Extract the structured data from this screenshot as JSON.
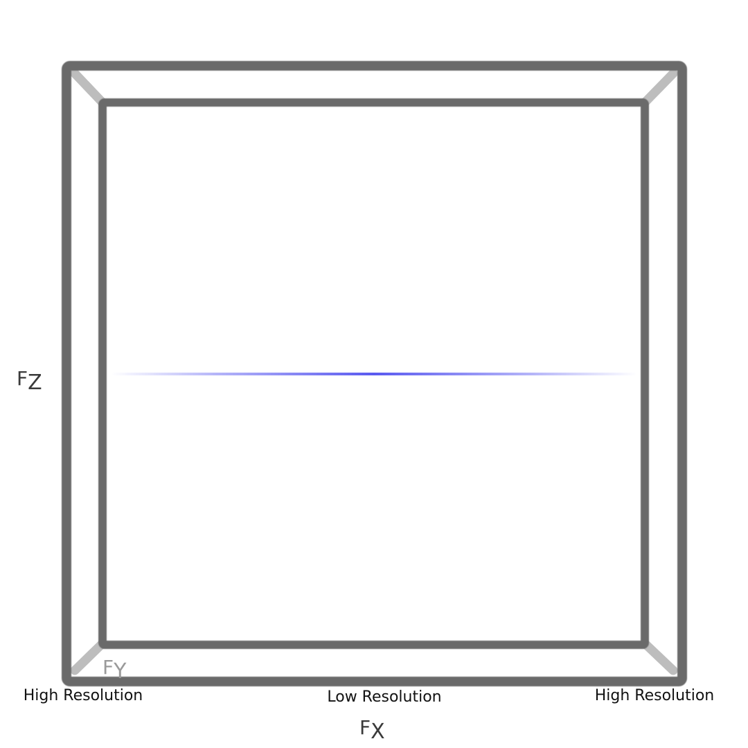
{
  "axes": {
    "fx": {
      "main": "F",
      "sub": "X"
    },
    "fy": {
      "main": "F",
      "sub": "Y"
    },
    "fz": {
      "main": "F",
      "sub": "Z"
    }
  },
  "resolution_labels": {
    "left": "High Resolution",
    "center": "Low Resolution",
    "right": "High Resolution"
  },
  "colors": {
    "frame": "#6b6b6b",
    "back_edges": "#bdbdbd",
    "streak": "#5a5af0"
  }
}
